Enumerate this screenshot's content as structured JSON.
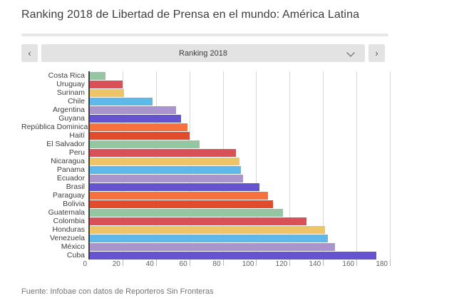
{
  "page": {
    "title": "Ranking 2018 de Libertad de Prensa en el mundo: América Latina",
    "source": "Fuente: Infobae con datos de Reporteros Sin Fronteras"
  },
  "selector": {
    "prev_glyph": "‹",
    "next_glyph": "›",
    "selected": "Ranking 2018",
    "chevron_icon": "chevron-down"
  },
  "chart_data": {
    "type": "bar",
    "orientation": "horizontal",
    "title": "Ranking 2018",
    "categories": [
      "Costa Rica",
      "Uruguay",
      "Surinam",
      "Chile",
      "Argentina",
      "Guyana",
      "República Dominicana",
      "Haití",
      "El Salvador",
      "Peru",
      "Nicaragua",
      "Panama",
      "Ecuador",
      "Brasil",
      "Paraguay",
      "Bolivia",
      "Guatemala",
      "Colombia",
      "Honduras",
      "Venezuela",
      "México",
      "Cuba"
    ],
    "values": [
      10,
      20,
      21,
      38,
      52,
      55,
      59,
      60,
      66,
      88,
      90,
      91,
      92,
      102,
      107,
      110,
      116,
      130,
      141,
      143,
      147,
      172
    ],
    "xlabel": "",
    "ylabel": "",
    "xlim": [
      0,
      180
    ],
    "x_ticks": [
      0,
      20,
      40,
      60,
      80,
      100,
      120,
      140,
      160,
      180
    ],
    "grid": true,
    "legend": false,
    "palette": [
      "#94c6a1",
      "#d95156",
      "#edc566",
      "#5eb9e8",
      "#a994cd",
      "#6553cf",
      "#f7713f",
      "#e04c2c"
    ],
    "axis_color": "#3f3f3f",
    "grid_color": "#d8d8d8"
  }
}
